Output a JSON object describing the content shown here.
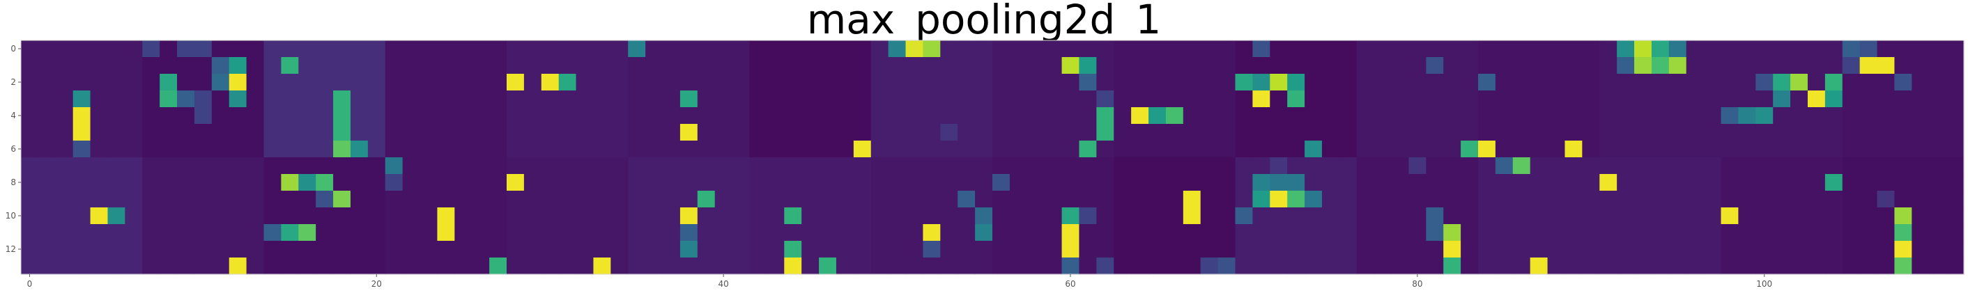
{
  "chart_data": {
    "type": "heatmap",
    "title": "max_pooling2d_1",
    "xlabel": "",
    "ylabel": "",
    "rows": 14,
    "cols": 112,
    "xlim": [
      -0.5,
      111.5
    ],
    "ylim": [
      13.5,
      -0.5
    ],
    "x_ticks": [
      0,
      20,
      40,
      60,
      80,
      100
    ],
    "x_tick_labels": [
      "0",
      "20",
      "40",
      "60",
      "80",
      "100"
    ],
    "y_ticks": [
      0,
      2,
      4,
      6,
      8,
      10,
      12
    ],
    "y_tick_labels": [
      "0",
      "2",
      "4",
      "6",
      "8",
      "10",
      "12"
    ],
    "colormap": "viridis",
    "colormap_stops": [
      "#440154",
      "#482878",
      "#3e4989",
      "#31688e",
      "#26828e",
      "#1f9e89",
      "#35b779",
      "#6ece58",
      "#b5de2b",
      "#fde725"
    ],
    "block_cols": 7,
    "block_rows": 7,
    "block_base_values": [
      [
        0.06,
        0.04,
        0.13,
        0.05,
        0.07,
        0.06,
        0.03,
        0.08,
        0.06,
        0.05,
        0.03,
        0.06,
        0.05,
        0.06,
        0.06,
        0.05
      ],
      [
        0.1,
        0.06,
        0.04,
        0.05,
        0.06,
        0.08,
        0.07,
        0.06,
        0.05,
        0.03,
        0.08,
        0.05,
        0.07,
        0.07,
        0.05,
        0.04
      ]
    ],
    "active_cells": [
      {
        "r": 0,
        "c": 7,
        "v": 0.2
      },
      {
        "r": 0,
        "c": 9,
        "v": 0.2
      },
      {
        "r": 0,
        "c": 10,
        "v": 0.2
      },
      {
        "r": 0,
        "c": 35,
        "v": 0.45
      },
      {
        "r": 0,
        "c": 50,
        "v": 0.45
      },
      {
        "r": 0,
        "c": 51,
        "v": 0.95
      },
      {
        "r": 0,
        "c": 52,
        "v": 0.85
      },
      {
        "r": 0,
        "c": 71,
        "v": 0.25
      },
      {
        "r": 0,
        "c": 92,
        "v": 0.5
      },
      {
        "r": 0,
        "c": 93,
        "v": 0.9
      },
      {
        "r": 0,
        "c": 94,
        "v": 0.6
      },
      {
        "r": 0,
        "c": 95,
        "v": 0.4
      },
      {
        "r": 0,
        "c": 105,
        "v": 0.3
      },
      {
        "r": 0,
        "c": 106,
        "v": 0.25
      },
      {
        "r": 1,
        "c": 11,
        "v": 0.3
      },
      {
        "r": 1,
        "c": 12,
        "v": 0.55
      },
      {
        "r": 1,
        "c": 15,
        "v": 0.65
      },
      {
        "r": 1,
        "c": 60,
        "v": 0.9
      },
      {
        "r": 1,
        "c": 61,
        "v": 0.55
      },
      {
        "r": 1,
        "c": 81,
        "v": 0.25
      },
      {
        "r": 1,
        "c": 92,
        "v": 0.3
      },
      {
        "r": 1,
        "c": 93,
        "v": 0.85
      },
      {
        "r": 1,
        "c": 94,
        "v": 0.7
      },
      {
        "r": 1,
        "c": 95,
        "v": 0.85
      },
      {
        "r": 1,
        "c": 105,
        "v": 0.2
      },
      {
        "r": 1,
        "c": 106,
        "v": 0.98
      },
      {
        "r": 1,
        "c": 107,
        "v": 0.98
      },
      {
        "r": 2,
        "c": 8,
        "v": 0.6
      },
      {
        "r": 2,
        "c": 11,
        "v": 0.35
      },
      {
        "r": 2,
        "c": 12,
        "v": 0.98
      },
      {
        "r": 2,
        "c": 28,
        "v": 0.98
      },
      {
        "r": 2,
        "c": 30,
        "v": 0.98
      },
      {
        "r": 2,
        "c": 31,
        "v": 0.6
      },
      {
        "r": 2,
        "c": 61,
        "v": 0.3
      },
      {
        "r": 2,
        "c": 70,
        "v": 0.6
      },
      {
        "r": 2,
        "c": 71,
        "v": 0.5
      },
      {
        "r": 2,
        "c": 72,
        "v": 0.9
      },
      {
        "r": 2,
        "c": 73,
        "v": 0.55
      },
      {
        "r": 2,
        "c": 84,
        "v": 0.3
      },
      {
        "r": 2,
        "c": 100,
        "v": 0.25
      },
      {
        "r": 2,
        "c": 101,
        "v": 0.6
      },
      {
        "r": 2,
        "c": 102,
        "v": 0.85
      },
      {
        "r": 2,
        "c": 104,
        "v": 0.65
      },
      {
        "r": 2,
        "c": 108,
        "v": 0.25
      },
      {
        "r": 3,
        "c": 3,
        "v": 0.5
      },
      {
        "r": 3,
        "c": 8,
        "v": 0.65
      },
      {
        "r": 3,
        "c": 9,
        "v": 0.3
      },
      {
        "r": 3,
        "c": 10,
        "v": 0.2
      },
      {
        "r": 3,
        "c": 12,
        "v": 0.5
      },
      {
        "r": 3,
        "c": 18,
        "v": 0.65
      },
      {
        "r": 3,
        "c": 38,
        "v": 0.6
      },
      {
        "r": 3,
        "c": 62,
        "v": 0.2
      },
      {
        "r": 3,
        "c": 71,
        "v": 0.98
      },
      {
        "r": 3,
        "c": 73,
        "v": 0.65
      },
      {
        "r": 3,
        "c": 101,
        "v": 0.45
      },
      {
        "r": 3,
        "c": 103,
        "v": 0.98
      },
      {
        "r": 3,
        "c": 104,
        "v": 0.55
      },
      {
        "r": 4,
        "c": 3,
        "v": 0.98
      },
      {
        "r": 4,
        "c": 10,
        "v": 0.2
      },
      {
        "r": 4,
        "c": 18,
        "v": 0.65
      },
      {
        "r": 4,
        "c": 62,
        "v": 0.65
      },
      {
        "r": 4,
        "c": 64,
        "v": 0.98
      },
      {
        "r": 4,
        "c": 65,
        "v": 0.55
      },
      {
        "r": 4,
        "c": 66,
        "v": 0.7
      },
      {
        "r": 4,
        "c": 98,
        "v": 0.3
      },
      {
        "r": 4,
        "c": 99,
        "v": 0.45
      },
      {
        "r": 4,
        "c": 100,
        "v": 0.5
      },
      {
        "r": 5,
        "c": 3,
        "v": 0.98
      },
      {
        "r": 5,
        "c": 18,
        "v": 0.65
      },
      {
        "r": 5,
        "c": 38,
        "v": 0.98
      },
      {
        "r": 5,
        "c": 53,
        "v": 0.15
      },
      {
        "r": 5,
        "c": 62,
        "v": 0.65
      },
      {
        "r": 6,
        "c": 3,
        "v": 0.25
      },
      {
        "r": 6,
        "c": 18,
        "v": 0.75
      },
      {
        "r": 6,
        "c": 19,
        "v": 0.5
      },
      {
        "r": 6,
        "c": 48,
        "v": 0.98
      },
      {
        "r": 6,
        "c": 61,
        "v": 0.65
      },
      {
        "r": 6,
        "c": 74,
        "v": 0.5
      },
      {
        "r": 6,
        "c": 83,
        "v": 0.65
      },
      {
        "r": 6,
        "c": 84,
        "v": 0.98
      },
      {
        "r": 6,
        "c": 89,
        "v": 0.98
      },
      {
        "r": 7,
        "c": 21,
        "v": 0.4
      },
      {
        "r": 7,
        "c": 72,
        "v": 0.15
      },
      {
        "r": 7,
        "c": 80,
        "v": 0.15
      },
      {
        "r": 7,
        "c": 85,
        "v": 0.3
      },
      {
        "r": 7,
        "c": 86,
        "v": 0.75
      },
      {
        "r": 8,
        "c": 15,
        "v": 0.85
      },
      {
        "r": 8,
        "c": 16,
        "v": 0.5
      },
      {
        "r": 8,
        "c": 17,
        "v": 0.7
      },
      {
        "r": 8,
        "c": 21,
        "v": 0.2
      },
      {
        "r": 8,
        "c": 28,
        "v": 0.98
      },
      {
        "r": 8,
        "c": 56,
        "v": 0.25
      },
      {
        "r": 8,
        "c": 71,
        "v": 0.45
      },
      {
        "r": 8,
        "c": 72,
        "v": 0.4
      },
      {
        "r": 8,
        "c": 73,
        "v": 0.4
      },
      {
        "r": 8,
        "c": 91,
        "v": 0.98
      },
      {
        "r": 8,
        "c": 104,
        "v": 0.6
      },
      {
        "r": 9,
        "c": 17,
        "v": 0.25
      },
      {
        "r": 9,
        "c": 18,
        "v": 0.8
      },
      {
        "r": 9,
        "c": 39,
        "v": 0.65
      },
      {
        "r": 9,
        "c": 54,
        "v": 0.3
      },
      {
        "r": 9,
        "c": 67,
        "v": 0.98
      },
      {
        "r": 9,
        "c": 71,
        "v": 0.55
      },
      {
        "r": 9,
        "c": 72,
        "v": 0.98
      },
      {
        "r": 9,
        "c": 73,
        "v": 0.7
      },
      {
        "r": 9,
        "c": 74,
        "v": 0.4
      },
      {
        "r": 9,
        "c": 107,
        "v": 0.15
      },
      {
        "r": 10,
        "c": 4,
        "v": 0.98
      },
      {
        "r": 10,
        "c": 5,
        "v": 0.5
      },
      {
        "r": 10,
        "c": 24,
        "v": 0.98
      },
      {
        "r": 10,
        "c": 38,
        "v": 0.98
      },
      {
        "r": 10,
        "c": 44,
        "v": 0.65
      },
      {
        "r": 10,
        "c": 55,
        "v": 0.35
      },
      {
        "r": 10,
        "c": 60,
        "v": 0.6
      },
      {
        "r": 10,
        "c": 61,
        "v": 0.2
      },
      {
        "r": 10,
        "c": 67,
        "v": 0.98
      },
      {
        "r": 10,
        "c": 70,
        "v": 0.3
      },
      {
        "r": 10,
        "c": 81,
        "v": 0.3
      },
      {
        "r": 10,
        "c": 98,
        "v": 0.98
      },
      {
        "r": 10,
        "c": 108,
        "v": 0.85
      },
      {
        "r": 11,
        "c": 14,
        "v": 0.3
      },
      {
        "r": 11,
        "c": 15,
        "v": 0.6
      },
      {
        "r": 11,
        "c": 16,
        "v": 0.75
      },
      {
        "r": 11,
        "c": 24,
        "v": 0.98
      },
      {
        "r": 11,
        "c": 38,
        "v": 0.3
      },
      {
        "r": 11,
        "c": 52,
        "v": 0.98
      },
      {
        "r": 11,
        "c": 55,
        "v": 0.45
      },
      {
        "r": 11,
        "c": 60,
        "v": 0.98
      },
      {
        "r": 11,
        "c": 81,
        "v": 0.3
      },
      {
        "r": 11,
        "c": 82,
        "v": 0.85
      },
      {
        "r": 11,
        "c": 108,
        "v": 0.7
      },
      {
        "r": 12,
        "c": 38,
        "v": 0.45
      },
      {
        "r": 12,
        "c": 44,
        "v": 0.65
      },
      {
        "r": 12,
        "c": 52,
        "v": 0.25
      },
      {
        "r": 12,
        "c": 60,
        "v": 0.98
      },
      {
        "r": 12,
        "c": 82,
        "v": 0.98
      },
      {
        "r": 12,
        "c": 108,
        "v": 0.98
      },
      {
        "r": 13,
        "c": 12,
        "v": 0.98
      },
      {
        "r": 13,
        "c": 27,
        "v": 0.65
      },
      {
        "r": 13,
        "c": 33,
        "v": 0.98
      },
      {
        "r": 13,
        "c": 44,
        "v": 0.98
      },
      {
        "r": 13,
        "c": 46,
        "v": 0.65
      },
      {
        "r": 13,
        "c": 60,
        "v": 0.3
      },
      {
        "r": 13,
        "c": 62,
        "v": 0.2
      },
      {
        "r": 13,
        "c": 68,
        "v": 0.2
      },
      {
        "r": 13,
        "c": 69,
        "v": 0.25
      },
      {
        "r": 13,
        "c": 82,
        "v": 0.65
      },
      {
        "r": 13,
        "c": 87,
        "v": 0.98
      },
      {
        "r": 13,
        "c": 108,
        "v": 0.75
      }
    ]
  }
}
